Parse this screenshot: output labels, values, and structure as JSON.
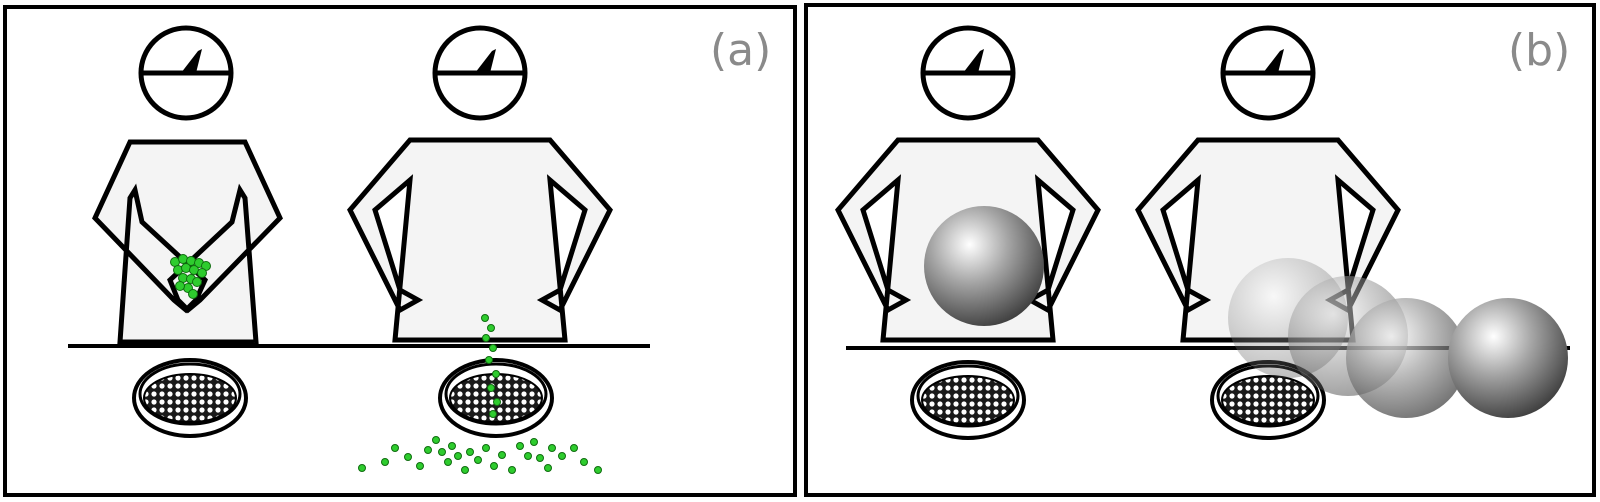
{
  "panels": [
    {
      "id": "a",
      "label": "(a)"
    },
    {
      "id": "b",
      "label": "(b)"
    }
  ],
  "colors": {
    "outline": "#000000",
    "body_fill": "#f4f4f4",
    "grain": "#2ecc2e",
    "grain_edge": "#0f6d0f",
    "sphere_light": "#ffffff",
    "sphere_mid": "#9a9a9a",
    "sphere_dark": "#3e3e3e",
    "label": "#8a8a8a"
  },
  "figures": [
    {
      "panel": "a",
      "pose": "hands-together"
    },
    {
      "panel": "a",
      "pose": "hands-on-hips"
    },
    {
      "panel": "b",
      "pose": "hands-on-hips"
    },
    {
      "panel": "b",
      "pose": "hands-on-hips"
    }
  ],
  "objects": {
    "panel_a_left_hands": "grains-held",
    "panel_a_right_sieve": "grains-falling-through",
    "panel_b_left_hands": "sphere-held",
    "panel_b_right_sieve": "sphere-rolling-over"
  }
}
